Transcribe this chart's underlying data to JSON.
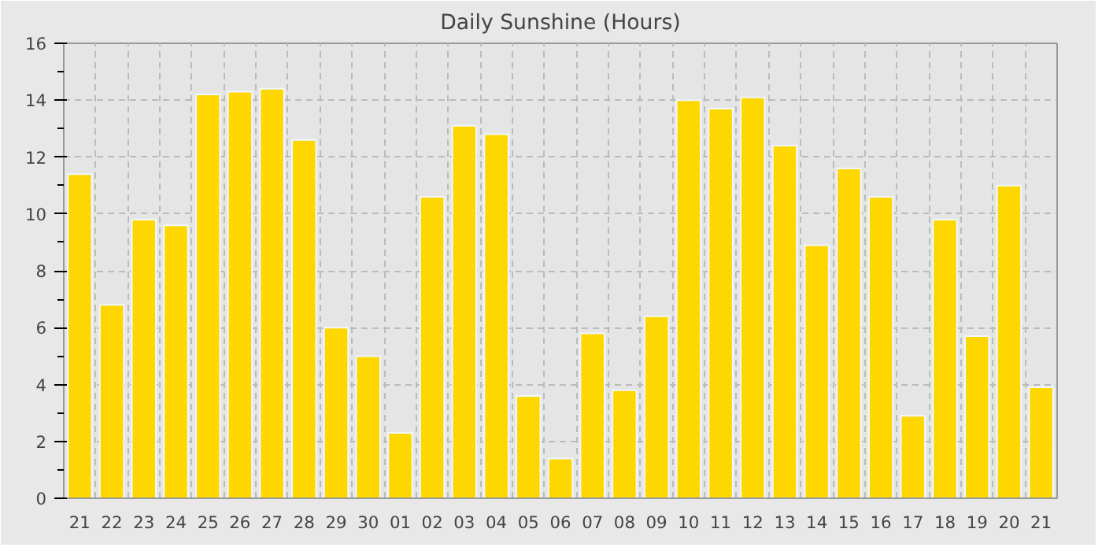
{
  "chart_data": {
    "type": "bar",
    "title": "Daily Sunshine (Hours)",
    "categories": [
      "21",
      "22",
      "23",
      "24",
      "25",
      "26",
      "27",
      "28",
      "29",
      "30",
      "01",
      "02",
      "03",
      "04",
      "05",
      "06",
      "07",
      "08",
      "09",
      "10",
      "11",
      "12",
      "13",
      "14",
      "15",
      "16",
      "17",
      "18",
      "19",
      "20",
      "21"
    ],
    "values": [
      11.4,
      6.8,
      9.8,
      9.6,
      14.2,
      14.3,
      14.4,
      12.6,
      6.0,
      5.0,
      2.3,
      10.6,
      13.1,
      12.8,
      3.6,
      1.4,
      5.8,
      3.8,
      6.4,
      14.0,
      13.7,
      14.1,
      12.4,
      8.9,
      11.6,
      10.6,
      2.9,
      9.8,
      5.7,
      11.0,
      3.9
    ],
    "color": "#ffd700",
    "ylim": [
      0,
      16
    ],
    "yticks": [
      0,
      2,
      4,
      6,
      8,
      10,
      12,
      14,
      16
    ],
    "grid": true
  }
}
